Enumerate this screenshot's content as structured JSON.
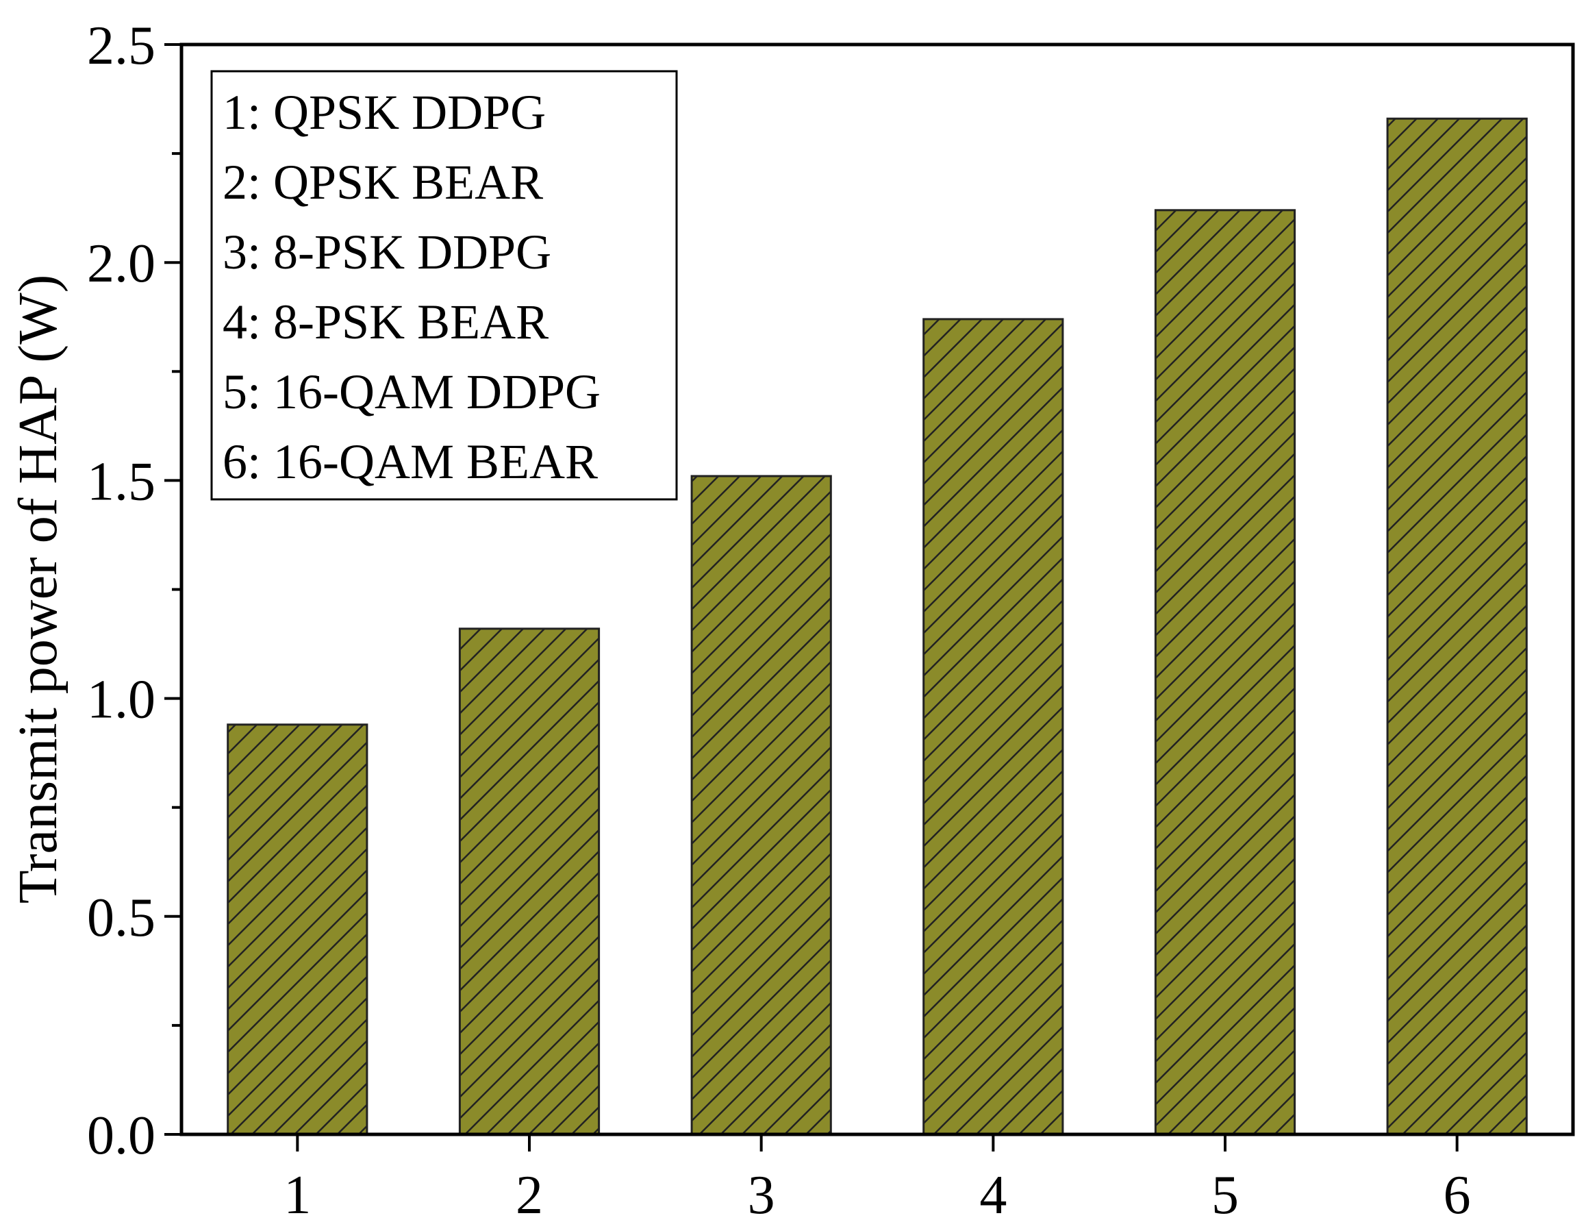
{
  "chart_data": {
    "type": "bar",
    "categories": [
      "1",
      "2",
      "3",
      "4",
      "5",
      "6"
    ],
    "values": [
      0.94,
      1.16,
      1.51,
      1.87,
      2.12,
      2.33
    ],
    "title": "",
    "xlabel": "",
    "ylabel": "Transmit power of HAP (W)",
    "ylim": [
      0,
      2.5
    ],
    "y_ticks": [
      "0.0",
      "0.5",
      "1.0",
      "1.5",
      "2.0",
      "2.5"
    ],
    "grid": false,
    "legend_position": "top-left",
    "legend": [
      "1: QPSK DDPG",
      "2: QPSK BEAR",
      "3: 8-PSK DDPG",
      "4: 8-PSK BEAR",
      "5: 16-QAM DDPG",
      "6: 16-QAM BEAR"
    ],
    "bar_color": "#8b8b2a",
    "hatch_color": "#222222"
  }
}
